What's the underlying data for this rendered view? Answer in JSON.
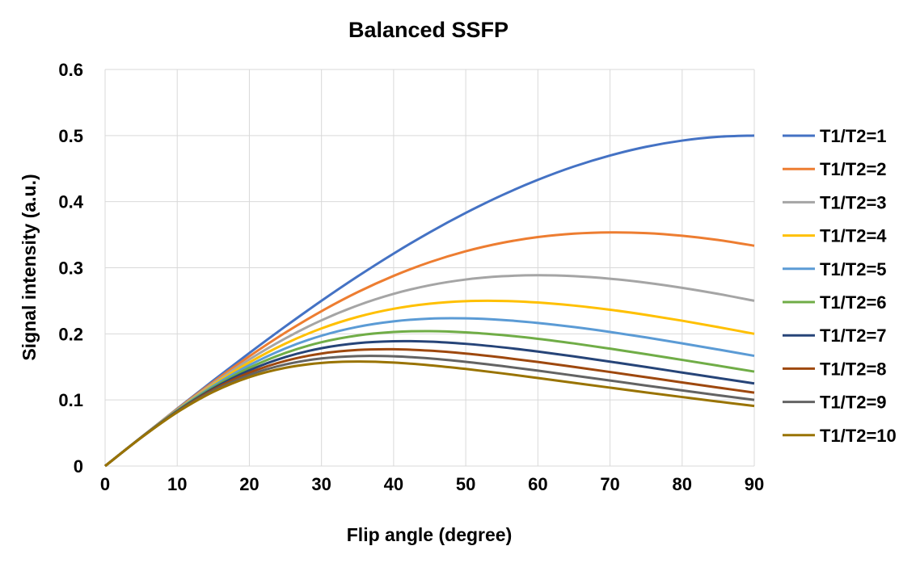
{
  "chart_data": {
    "type": "line",
    "title": "Balanced SSFP",
    "xlabel": "Flip angle (degree)",
    "ylabel": "Signal intensity (a.u.)",
    "xlim": [
      0,
      90
    ],
    "ylim": [
      0,
      0.6
    ],
    "xticks": [
      0,
      10,
      20,
      30,
      40,
      50,
      60,
      70,
      80,
      90
    ],
    "yticks": [
      0,
      0.1,
      0.2,
      0.3,
      0.4,
      0.5,
      0.6
    ],
    "ytick_labels": [
      "0",
      "0.1",
      "0.2",
      "0.3",
      "0.4",
      "0.5",
      "0.6"
    ],
    "grid": "vertical and horizontal",
    "legend_position": "right",
    "x": [
      0,
      5,
      10,
      15,
      20,
      25,
      30,
      35,
      40,
      45,
      50,
      55,
      60,
      65,
      70,
      75,
      80,
      85,
      90
    ],
    "series": [
      {
        "name": "T1/T2=1",
        "color": "#4472C4",
        "values": [
          0,
          0.0436,
          0.0868,
          0.1294,
          0.171,
          0.2113,
          0.25,
          0.2868,
          0.3214,
          0.3536,
          0.383,
          0.4096,
          0.433,
          0.4532,
          0.4698,
          0.483,
          0.4924,
          0.4981,
          0.5
        ]
      },
      {
        "name": "T1/T2=2",
        "color": "#ED7D31",
        "values": [
          0,
          0.0435,
          0.0862,
          0.1272,
          0.166,
          0.2019,
          0.2343,
          0.263,
          0.2877,
          0.3084,
          0.325,
          0.3376,
          0.3464,
          0.3516,
          0.3535,
          0.3524,
          0.3484,
          0.342,
          0.3333
        ]
      },
      {
        "name": "T1/T2=3",
        "color": "#A5A5A5",
        "values": [
          0,
          0.0434,
          0.0855,
          0.1251,
          0.1613,
          0.1932,
          0.2205,
          0.2429,
          0.2605,
          0.2735,
          0.2822,
          0.2871,
          0.2887,
          0.2873,
          0.2834,
          0.2774,
          0.2696,
          0.2604,
          0.25
        ]
      },
      {
        "name": "T1/T2=4",
        "color": "#FFC000",
        "values": [
          0,
          0.0433,
          0.0849,
          0.1231,
          0.1568,
          0.1853,
          0.2082,
          0.2256,
          0.2379,
          0.2456,
          0.2494,
          0.2498,
          0.2474,
          0.2428,
          0.2365,
          0.2287,
          0.2199,
          0.2102,
          0.2
        ]
      },
      {
        "name": "T1/T2=5",
        "color": "#5B9BD5",
        "values": [
          0,
          0.0433,
          0.0843,
          0.1212,
          0.1526,
          0.178,
          0.1972,
          0.2106,
          0.2189,
          0.223,
          0.2234,
          0.2211,
          0.2165,
          0.2103,
          0.2029,
          0.1946,
          0.1856,
          0.1763,
          0.1667
        ]
      },
      {
        "name": "T1/T2=6",
        "color": "#70AD47",
        "values": [
          0,
          0.0432,
          0.0836,
          0.1193,
          0.1486,
          0.1712,
          0.1873,
          0.1975,
          0.2028,
          0.2041,
          0.2023,
          0.1982,
          0.1925,
          0.1855,
          0.1776,
          0.1693,
          0.1606,
          0.1518,
          0.1429
        ]
      },
      {
        "name": "T1/T2=7",
        "color": "#264478",
        "values": [
          0,
          0.0431,
          0.083,
          0.1174,
          0.1448,
          0.1649,
          0.1783,
          0.1859,
          0.1888,
          0.1882,
          0.1849,
          0.1797,
          0.1732,
          0.1659,
          0.158,
          0.1498,
          0.1415,
          0.1332,
          0.125
        ]
      },
      {
        "name": "T1/T2=8",
        "color": "#9E480E",
        "values": [
          0,
          0.043,
          0.0824,
          0.1156,
          0.1412,
          0.1591,
          0.1702,
          0.1756,
          0.1767,
          0.1746,
          0.1702,
          0.1643,
          0.1575,
          0.15,
          0.1423,
          0.1344,
          0.1265,
          0.1187,
          0.1111
        ]
      },
      {
        "name": "T1/T2=9",
        "color": "#636363",
        "values": [
          0,
          0.0429,
          0.0819,
          0.1139,
          0.1378,
          0.1537,
          0.1628,
          0.1664,
          0.166,
          0.1628,
          0.1577,
          0.1514,
          0.1443,
          0.1369,
          0.1294,
          0.1218,
          0.1144,
          0.1071,
          0.1
        ]
      },
      {
        "name": "T1/T2=10",
        "color": "#997300",
        "values": [
          0,
          0.0428,
          0.0813,
          0.1122,
          0.1345,
          0.1486,
          0.156,
          0.1581,
          0.1566,
          0.1525,
          0.1469,
          0.1403,
          0.1332,
          0.1259,
          0.1186,
          0.1114,
          0.1044,
          0.0975,
          0.0909
        ]
      }
    ]
  }
}
